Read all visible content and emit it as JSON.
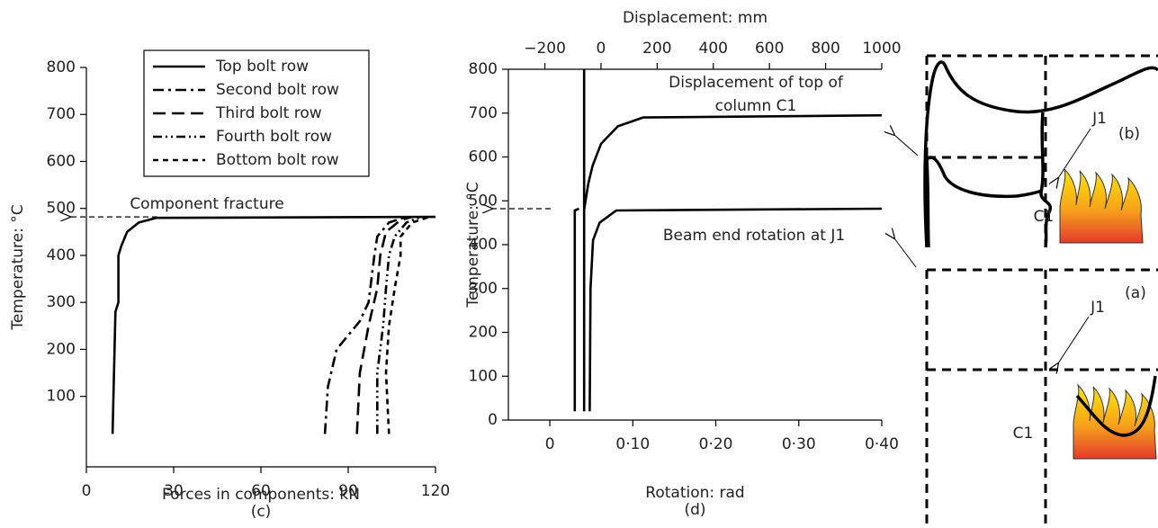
{
  "chart_data": [
    {
      "type": "line",
      "xlabel": "Forces in components: kN",
      "ylabel": "Temperature: °C",
      "panel": "(c)",
      "xlim": [
        0,
        120
      ],
      "xticks": [
        0,
        30,
        60,
        90,
        120
      ],
      "ylim": [
        -50,
        800
      ],
      "yticks": [
        100,
        200,
        300,
        400,
        500,
        600,
        700,
        800
      ],
      "legend": "upper center",
      "annotations": [
        "Component fracture"
      ],
      "series": [
        {
          "name": "Top bolt row",
          "color": "#000000",
          "dash": "solid",
          "x": [
            9,
            9.5,
            10,
            11,
            11,
            12,
            14,
            18,
            24,
            120
          ],
          "values": [
            20,
            150,
            280,
            300,
            400,
            420,
            450,
            470,
            480,
            482
          ]
        },
        {
          "name": "Second bolt row",
          "color": "#000000",
          "dash": "dash-dot",
          "x": [
            82,
            83,
            86,
            94,
            97,
            99,
            100,
            104,
            110
          ],
          "values": [
            20,
            120,
            200,
            260,
            300,
            400,
            440,
            470,
            482
          ]
        },
        {
          "name": "Third bolt row",
          "color": "#000000",
          "dash": "long-dash",
          "x": [
            93,
            94,
            97,
            100,
            101,
            103,
            108,
            112
          ],
          "values": [
            20,
            150,
            250,
            330,
            400,
            450,
            475,
            482
          ]
        },
        {
          "name": "Fourth bolt row",
          "color": "#000000",
          "dash": "dash-dot-dot",
          "x": [
            100,
            100,
            102,
            103,
            104,
            106,
            110,
            115
          ],
          "values": [
            20,
            150,
            250,
            330,
            400,
            440,
            470,
            482
          ]
        },
        {
          "name": "Bottom bolt row",
          "color": "#000000",
          "dash": "short-dash",
          "x": [
            104,
            103,
            104,
            106,
            108,
            108,
            112,
            118
          ],
          "values": [
            20,
            150,
            250,
            330,
            400,
            440,
            470,
            482
          ]
        }
      ]
    },
    {
      "type": "line",
      "xlabel": "Rotation: rad",
      "x2label": "Displacement: mm",
      "ylabel": "Temperature: °C",
      "panel": "(d)",
      "xlim": [
        -0.05,
        0.4
      ],
      "xticks": [
        0,
        {
          "value": 0.1,
          "label": "0·10"
        },
        {
          "value": 0.2,
          "label": "0·20"
        },
        {
          "value": 0.3,
          "label": "0·30"
        },
        {
          "value": 0.4,
          "label": "0·40"
        }
      ],
      "x2lim": [
        -330,
        1000
      ],
      "x2ticks": [
        {
          "value": -200,
          "label": "−200"
        },
        0,
        200,
        400,
        600,
        800,
        1000
      ],
      "ylim": [
        0,
        800
      ],
      "yticks": [
        0,
        100,
        200,
        300,
        400,
        500,
        600,
        700,
        800
      ],
      "annotations": [
        "Displacement of top of",
        "column C1",
        "Beam end rotation at J1"
      ],
      "series": [
        {
          "color": "#000000",
          "dash": "solid",
          "axis": "x2",
          "x": [
            -60,
            -60,
            null,
            -60,
            -45,
            -30,
            0,
            60,
            150,
            1000
          ],
          "values": [
            800,
            20,
            null,
            480,
            540,
            580,
            630,
            670,
            690,
            695
          ]
        },
        {
          "color": "#000000",
          "dash": "solid",
          "x": [
            0.03,
            0.03,
            0.035,
            null,
            0.048,
            0.049,
            0.052,
            0.06,
            0.08,
            0.4
          ],
          "values": [
            20,
            478,
            482,
            null,
            20,
            300,
            410,
            450,
            478,
            482
          ]
        }
      ]
    }
  ],
  "diagram": {
    "panel_b": {
      "joint": "J1",
      "label": "(b)",
      "column": "C1"
    },
    "panel_a": {
      "label": "(a)",
      "joint": "J1",
      "column": "C1"
    }
  }
}
